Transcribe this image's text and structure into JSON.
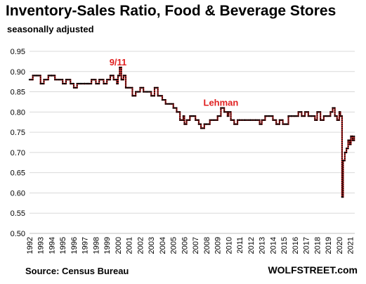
{
  "header": {
    "title": "Inventory-Sales  Ratio, Food & Beverage Stores",
    "subtitle": "seasonally adjusted"
  },
  "footer": {
    "source": "Source: Census Bureau",
    "brand": "WOLFSTREET.com"
  },
  "colors": {
    "line": "#e02020",
    "markers": "#000000",
    "grid": "#d9d9d9",
    "annotation": "#e02020"
  },
  "chart_data": {
    "type": "line",
    "title": "Inventory-Sales  Ratio, Food & Beverage Stores",
    "subtitle": "seasonally adjusted",
    "xlabel": "",
    "ylabel": "",
    "ylim": [
      0.5,
      0.95
    ],
    "xlim": [
      1992,
      2021.4
    ],
    "grid": "horizontal",
    "yticks": [
      "0.50",
      "0.55",
      "0.60",
      "0.65",
      "0.70",
      "0.75",
      "0.80",
      "0.85",
      "0.90",
      "0.95"
    ],
    "xticks": [
      "1992",
      "1993",
      "1994",
      "1995",
      "1996",
      "1997",
      "1998",
      "1999",
      "2000",
      "2001",
      "2002",
      "2003",
      "2004",
      "2005",
      "2006",
      "2007",
      "2008",
      "2009",
      "2010",
      "2011",
      "2012",
      "2013",
      "2014",
      "2015",
      "2016",
      "2017",
      "2018",
      "2019",
      "2020",
      "2021"
    ],
    "annotations": [
      {
        "text": "9/11",
        "x": 2000.0,
        "y": 0.915
      },
      {
        "text": "Lehman",
        "x": 2009.3,
        "y": 0.815
      }
    ],
    "series": [
      {
        "points": [
          [
            1992.0,
            0.88
          ],
          [
            1992.3,
            0.89
          ],
          [
            1992.7,
            0.89
          ],
          [
            1993.0,
            0.87
          ],
          [
            1993.3,
            0.88
          ],
          [
            1993.7,
            0.89
          ],
          [
            1994.0,
            0.89
          ],
          [
            1994.3,
            0.88
          ],
          [
            1994.7,
            0.88
          ],
          [
            1995.0,
            0.87
          ],
          [
            1995.3,
            0.88
          ],
          [
            1995.7,
            0.87
          ],
          [
            1996.0,
            0.86
          ],
          [
            1996.3,
            0.87
          ],
          [
            1996.7,
            0.87
          ],
          [
            1997.0,
            0.87
          ],
          [
            1997.3,
            0.87
          ],
          [
            1997.6,
            0.88
          ],
          [
            1998.0,
            0.87
          ],
          [
            1998.3,
            0.88
          ],
          [
            1998.7,
            0.87
          ],
          [
            1999.0,
            0.88
          ],
          [
            1999.3,
            0.89
          ],
          [
            1999.6,
            0.88
          ],
          [
            1999.9,
            0.87
          ],
          [
            2000.0,
            0.89
          ],
          [
            2000.15,
            0.91
          ],
          [
            2000.3,
            0.88
          ],
          [
            2000.5,
            0.89
          ],
          [
            2000.7,
            0.86
          ],
          [
            2001.0,
            0.86
          ],
          [
            2001.3,
            0.84
          ],
          [
            2001.6,
            0.85
          ],
          [
            2002.0,
            0.86
          ],
          [
            2002.3,
            0.85
          ],
          [
            2002.7,
            0.85
          ],
          [
            2003.0,
            0.84
          ],
          [
            2003.3,
            0.86
          ],
          [
            2003.6,
            0.84
          ],
          [
            2004.0,
            0.83
          ],
          [
            2004.3,
            0.82
          ],
          [
            2004.7,
            0.82
          ],
          [
            2005.0,
            0.81
          ],
          [
            2005.3,
            0.8
          ],
          [
            2005.6,
            0.78
          ],
          [
            2005.9,
            0.79
          ],
          [
            2006.0,
            0.77
          ],
          [
            2006.2,
            0.78
          ],
          [
            2006.5,
            0.79
          ],
          [
            2006.8,
            0.79
          ],
          [
            2007.0,
            0.78
          ],
          [
            2007.3,
            0.77
          ],
          [
            2007.5,
            0.76
          ],
          [
            2007.8,
            0.77
          ],
          [
            2008.0,
            0.77
          ],
          [
            2008.3,
            0.78
          ],
          [
            2008.7,
            0.78
          ],
          [
            2009.0,
            0.79
          ],
          [
            2009.3,
            0.81
          ],
          [
            2009.6,
            0.8
          ],
          [
            2009.9,
            0.79
          ],
          [
            2010.0,
            0.8
          ],
          [
            2010.2,
            0.78
          ],
          [
            2010.5,
            0.77
          ],
          [
            2010.8,
            0.78
          ],
          [
            2011.0,
            0.78
          ],
          [
            2011.5,
            0.78
          ],
          [
            2012.0,
            0.78
          ],
          [
            2012.5,
            0.78
          ],
          [
            2012.8,
            0.77
          ],
          [
            2013.0,
            0.78
          ],
          [
            2013.3,
            0.79
          ],
          [
            2013.7,
            0.79
          ],
          [
            2014.0,
            0.78
          ],
          [
            2014.3,
            0.77
          ],
          [
            2014.6,
            0.78
          ],
          [
            2014.9,
            0.77
          ],
          [
            2015.2,
            0.77
          ],
          [
            2015.4,
            0.79
          ],
          [
            2015.7,
            0.79
          ],
          [
            2016.0,
            0.79
          ],
          [
            2016.3,
            0.8
          ],
          [
            2016.6,
            0.79
          ],
          [
            2016.9,
            0.8
          ],
          [
            2017.2,
            0.79
          ],
          [
            2017.5,
            0.79
          ],
          [
            2017.8,
            0.78
          ],
          [
            2018.0,
            0.8
          ],
          [
            2018.3,
            0.78
          ],
          [
            2018.6,
            0.79
          ],
          [
            2018.9,
            0.79
          ],
          [
            2019.2,
            0.8
          ],
          [
            2019.4,
            0.81
          ],
          [
            2019.6,
            0.79
          ],
          [
            2019.8,
            0.78
          ],
          [
            2020.0,
            0.8
          ],
          [
            2020.1,
            0.79
          ],
          [
            2020.25,
            0.59
          ],
          [
            2020.35,
            0.68
          ],
          [
            2020.5,
            0.7
          ],
          [
            2020.65,
            0.71
          ],
          [
            2020.8,
            0.73
          ],
          [
            2020.95,
            0.72
          ],
          [
            2021.05,
            0.74
          ],
          [
            2021.2,
            0.73
          ],
          [
            2021.35,
            0.74
          ]
        ]
      }
    ]
  }
}
